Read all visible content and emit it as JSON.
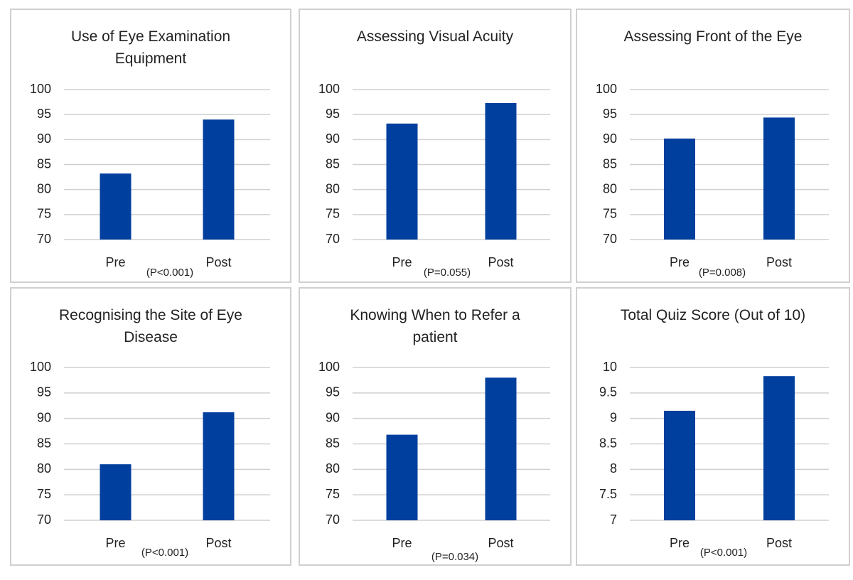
{
  "chart_data": [
    {
      "type": "bar",
      "title": "Use of Eye Examination Equipment",
      "categories": [
        "Pre",
        "Post"
      ],
      "values": [
        83.2,
        94
      ],
      "color": "#003f9e",
      "ylim": [
        70,
        100
      ],
      "yticks": [
        70,
        75,
        80,
        85,
        90,
        95,
        100
      ],
      "grid": true,
      "annotation": "(P<0.001)"
    },
    {
      "type": "bar",
      "title": "Assessing Visual Acuity",
      "categories": [
        "Pre",
        "Post"
      ],
      "values": [
        93.2,
        97.3
      ],
      "color": "#003f9e",
      "ylim": [
        70,
        100
      ],
      "yticks": [
        70,
        75,
        80,
        85,
        90,
        95,
        100
      ],
      "grid": true,
      "annotation": "(P=0.055)"
    },
    {
      "type": "bar",
      "title": "Assessing Front of the Eye",
      "categories": [
        "Pre",
        "Post"
      ],
      "values": [
        90.2,
        94.4
      ],
      "color": "#003f9e",
      "ylim": [
        70,
        100
      ],
      "yticks": [
        70,
        75,
        80,
        85,
        90,
        95,
        100
      ],
      "grid": true,
      "annotation": "(P=0.008)"
    },
    {
      "type": "bar",
      "title": "Recognising the Site of Eye Disease",
      "categories": [
        "Pre",
        "Post"
      ],
      "values": [
        81,
        91.2
      ],
      "color": "#003f9e",
      "ylim": [
        70,
        100
      ],
      "yticks": [
        70,
        75,
        80,
        85,
        90,
        95,
        100
      ],
      "grid": true,
      "annotation": "(P<0.001)"
    },
    {
      "type": "bar",
      "title": "Knowing When to Refer a patient",
      "categories": [
        "Pre",
        "Post"
      ],
      "values": [
        86.8,
        98
      ],
      "color": "#003f9e",
      "ylim": [
        70,
        100
      ],
      "yticks": [
        70,
        75,
        80,
        85,
        90,
        95,
        100
      ],
      "grid": true,
      "annotation": "(P=0.034)"
    },
    {
      "type": "bar",
      "title": "Total Quiz Score (Out of 10)",
      "categories": [
        "Pre",
        "Post"
      ],
      "values": [
        9.15,
        9.83
      ],
      "color": "#003f9e",
      "ylim": [
        7,
        10
      ],
      "yticks": [
        7,
        7.5,
        8,
        8.5,
        9,
        9.5,
        10
      ],
      "grid": true,
      "annotation": "(P<0.001)"
    }
  ]
}
